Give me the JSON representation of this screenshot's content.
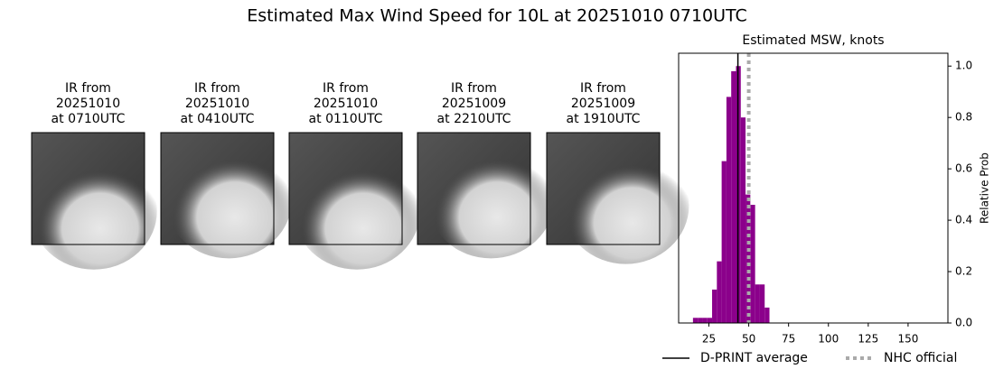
{
  "title": "Estimated Max Wind Speed for 10L at 20251010 0710UTC",
  "images": [
    {
      "lines": [
        "IR from",
        "20251010",
        "at 0710UTC"
      ]
    },
    {
      "lines": [
        "IR from",
        "20251010",
        "at 0410UTC"
      ]
    },
    {
      "lines": [
        "IR from",
        "20251010",
        "at 0110UTC"
      ]
    },
    {
      "lines": [
        "IR from",
        "20251009",
        "at 2210UTC"
      ]
    },
    {
      "lines": [
        "IR from",
        "20251009",
        "at 1910UTC"
      ]
    }
  ],
  "chart_data": {
    "type": "histogram",
    "title": "Estimated MSW, knots",
    "ylabel": "Relative Prob",
    "bins": [
      15,
      18,
      21,
      24,
      27,
      30,
      33,
      36,
      39,
      42,
      45,
      48,
      51,
      54,
      57,
      60,
      63
    ],
    "values": [
      0.02,
      0.02,
      0.02,
      0.02,
      0.13,
      0.24,
      0.63,
      0.88,
      0.98,
      1.0,
      0.8,
      0.5,
      0.46,
      0.15,
      0.15,
      0.06
    ],
    "color": "#8b008b",
    "xlim": [
      6,
      175
    ],
    "ylim": [
      0,
      1.05
    ],
    "xticks": [
      25,
      50,
      75,
      100,
      125,
      150
    ],
    "yticks": [
      {
        "value": 0,
        "label": "0.0"
      },
      0.2,
      0.4,
      0.6,
      0.8,
      {
        "value": 1,
        "label": "1.0"
      }
    ],
    "vlines": [
      {
        "name": "D-PRINT average",
        "x": 43.2,
        "color": "#000000",
        "style": "solid"
      },
      {
        "name": "NHC official",
        "x": 50,
        "color": "#aaaaaa",
        "style": "dotted"
      }
    ]
  }
}
